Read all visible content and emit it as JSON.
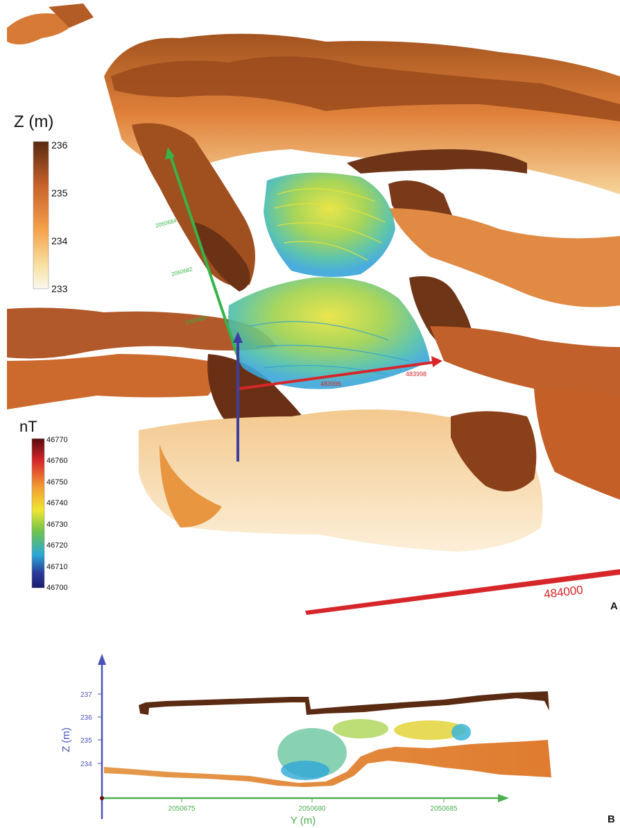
{
  "panel_a": {
    "label": "A",
    "z_legend": {
      "title": "Z (m)",
      "ticks": [
        "236",
        "235",
        "234",
        "233"
      ],
      "colors": [
        "#5a2a12",
        "#c8622a",
        "#f4a24a",
        "#f8e3a6",
        "#fbf7ee"
      ]
    },
    "nt_legend": {
      "title": "nT",
      "ticks": [
        "46770",
        "46760",
        "46750",
        "46740",
        "46730",
        "46720",
        "46710",
        "46700"
      ],
      "colors": [
        "#5a0b0e",
        "#d7282a",
        "#f29a32",
        "#f0e630",
        "#6fc44a",
        "#2aa7d6",
        "#2b3a9c",
        "#1b1d6b"
      ]
    },
    "axis_labels": {
      "x_near": "483996",
      "x_far": "483998",
      "x_big": "484000",
      "y_1": "2050684",
      "y_2": "2050682",
      "y_3": "2050680"
    },
    "axis_colors": {
      "x": "#d6262a",
      "y": "#37b34a",
      "z": "#3b3fa0"
    }
  },
  "panel_b": {
    "label": "B",
    "y_axis_title": "Z (m)",
    "x_axis_title": "Y (m)",
    "y_ticks": [
      "237",
      "236",
      "235",
      "234"
    ],
    "x_ticks": [
      "2050675",
      "2050680",
      "2050685"
    ],
    "axis_colors": {
      "x": "#4caf50",
      "y": "#4a52b8"
    }
  }
}
